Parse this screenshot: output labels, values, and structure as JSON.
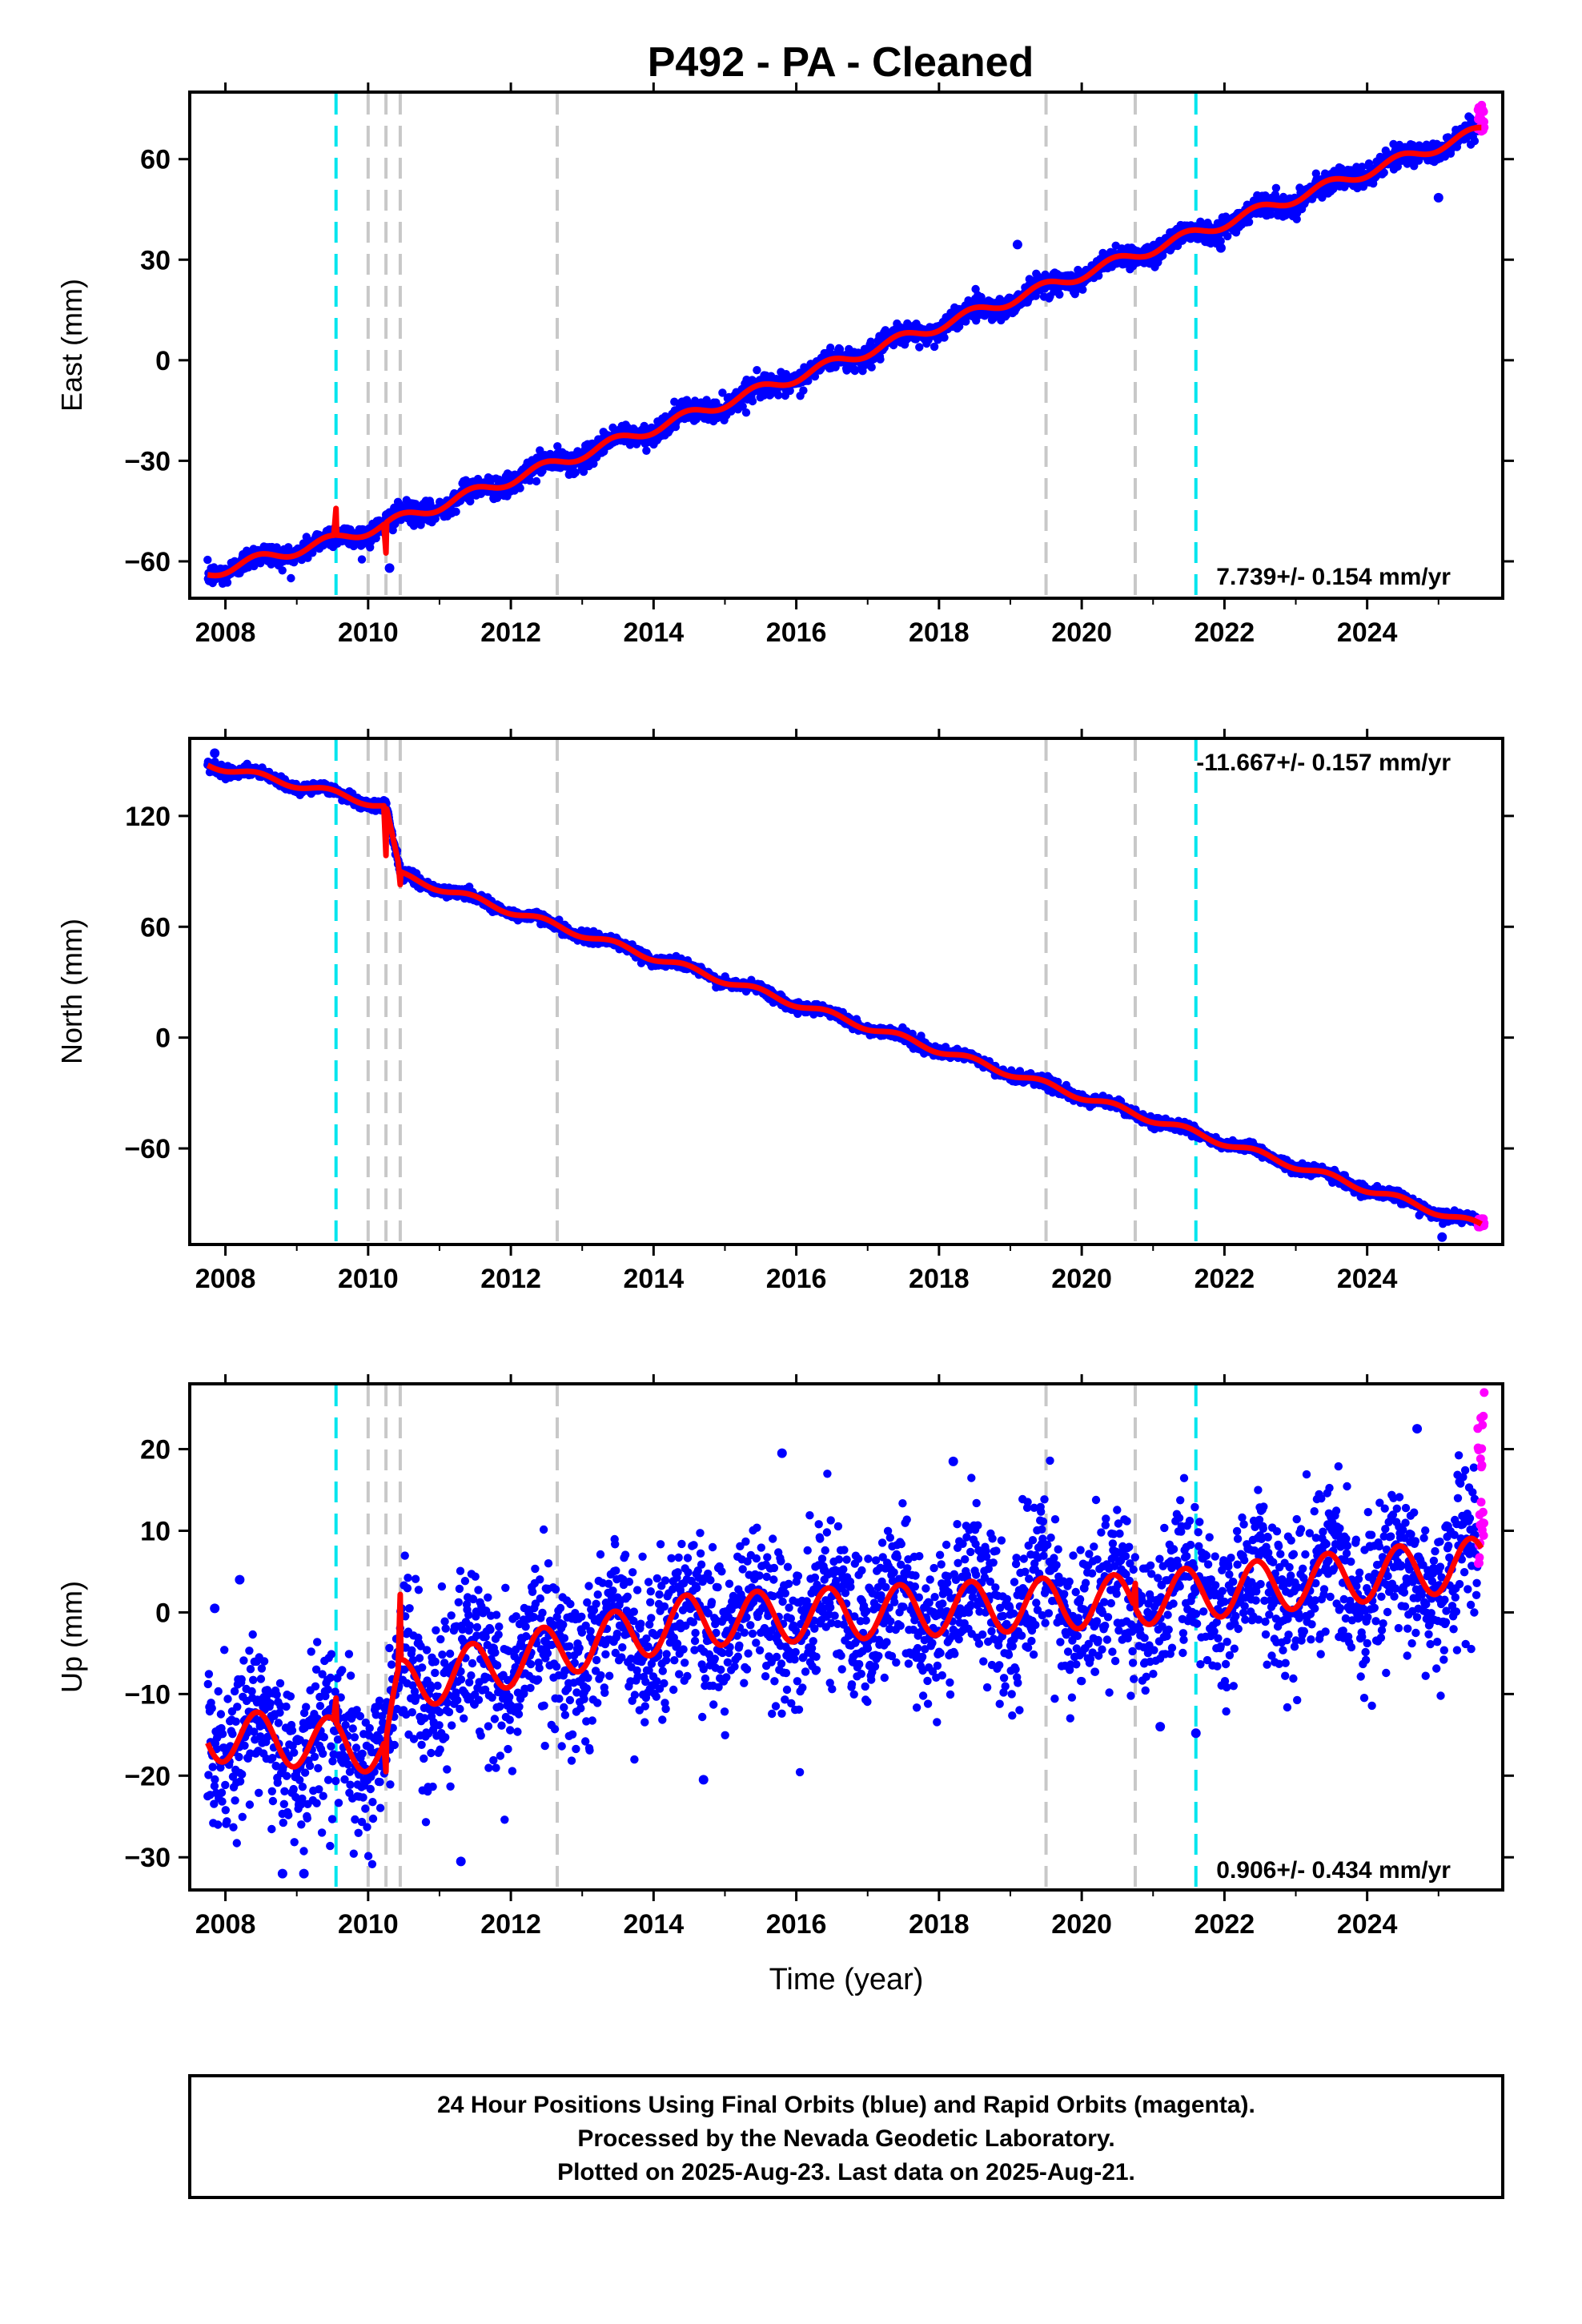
{
  "title": "P492  - PA - Cleaned",
  "colors": {
    "final_orbits": "#0000ff",
    "rapid_orbits": "#ff00ff",
    "model": "#ff0000",
    "offset_equipment": "#00e5ee",
    "offset_other": "#c8c8c8",
    "frame": "#000000"
  },
  "footer": {
    "line1": "24 Hour Positions Using Final Orbits (blue) and Rapid Orbits (magenta).",
    "line2": "Processed by the Nevada Geodetic Laboratory.",
    "line3": "Plotted on 2025-Aug-23. Last data on 2025-Aug-21."
  },
  "chart_data": [
    {
      "type": "scatter",
      "ylabel": "East (mm)",
      "xlabel": "",
      "xlim": [
        2007.5,
        2025.9
      ],
      "ylim": [
        -71,
        80
      ],
      "x_ticks": [
        2008,
        2010,
        2012,
        2014,
        2016,
        2018,
        2020,
        2022,
        2024
      ],
      "y_ticks": [
        -60,
        -30,
        0,
        30,
        60
      ],
      "y_tick_labels": [
        "−60",
        "−30",
        "0",
        "30",
        "60"
      ],
      "rate_label": "7.739+/- 0.154 mm/yr",
      "rate_position": "bottom-right",
      "offsets_cyan": [
        2009.55,
        2021.6
      ],
      "offsets_gray": [
        2010.0,
        2010.25,
        2010.45,
        2012.65,
        2019.5,
        2020.75
      ],
      "model_trend": {
        "t": [
          2007.75,
          2009.55,
          2010.25,
          2025.6
        ],
        "y": [
          -63.5,
          -53.5,
          -49,
          68.5
        ],
        "seasonal_amplitude": 1.6
      },
      "model_steps": [
        {
          "x": 2009.55,
          "dy": 8
        },
        {
          "x": 2010.25,
          "dy": -9
        }
      ],
      "final_orbits": {
        "start": 2007.75,
        "end": 2025.55,
        "noise": 1.6,
        "outliers": [
          [
            2019.1,
            34.5
          ],
          [
            2021.95,
            33.5
          ],
          [
            2025.0,
            48.5
          ],
          [
            2010.3,
            -62
          ]
        ]
      },
      "rapid_orbits": {
        "start": 2025.55,
        "end": 2025.64,
        "y_range": [
          68,
          77
        ]
      }
    },
    {
      "type": "scatter",
      "ylabel": "North (mm)",
      "xlabel": "",
      "xlim": [
        2007.5,
        2025.9
      ],
      "ylim": [
        -112,
        162
      ],
      "x_ticks": [
        2008,
        2010,
        2012,
        2014,
        2016,
        2018,
        2020,
        2022,
        2024
      ],
      "y_ticks": [
        -60,
        0,
        60,
        120
      ],
      "y_tick_labels": [
        "−60",
        "0",
        "60",
        "120"
      ],
      "rate_label": "-11.667+/- 0.157 mm/yr",
      "rate_position": "top-right",
      "offsets_cyan": [
        2009.55,
        2021.6
      ],
      "offsets_gray": [
        2010.0,
        2010.25,
        2010.45,
        2012.65,
        2019.5,
        2020.75
      ],
      "model_trend": {
        "t": [
          2007.75,
          2009.55,
          2010.25,
          2010.45,
          2025.6
        ],
        "y": [
          148,
          132,
          125,
          88,
          -102
        ],
        "seasonal_amplitude": 1.8
      },
      "model_steps": [
        {
          "x": 2010.25,
          "dy": -27
        },
        {
          "x": 2010.45,
          "dy": -7
        }
      ],
      "final_orbits": {
        "start": 2007.75,
        "end": 2025.55,
        "noise": 1.4,
        "outliers": [
          [
            2007.85,
            154
          ],
          [
            2025.05,
            -108
          ]
        ]
      },
      "rapid_orbits": {
        "start": 2025.55,
        "end": 2025.64,
        "y_range": [
          -103,
          -98
        ]
      }
    },
    {
      "type": "scatter",
      "ylabel": "Up (mm)",
      "xlabel": "Time (year)",
      "xlim": [
        2007.5,
        2025.9
      ],
      "ylim": [
        -34,
        28
      ],
      "x_ticks": [
        2008,
        2010,
        2012,
        2014,
        2016,
        2018,
        2020,
        2022,
        2024
      ],
      "y_ticks": [
        -30,
        -20,
        -10,
        0,
        10,
        20
      ],
      "y_tick_labels": [
        "−30",
        "−20",
        "−10",
        "0",
        "10",
        "20"
      ],
      "rate_label": "0.906+/- 0.434 mm/yr",
      "rate_position": "bottom-right",
      "offsets_cyan": [
        2009.55,
        2021.6
      ],
      "offsets_gray": [
        2010.0,
        2010.25,
        2010.45,
        2012.65,
        2019.5,
        2020.75
      ],
      "model_trend": {
        "t": [
          2007.75,
          2010.25,
          2010.45,
          2014.5,
          2020.7,
          2025.6
        ],
        "y": [
          -15,
          -16.5,
          -9,
          -1,
          1.5,
          6
        ],
        "seasonal_amplitude": 3.2
      },
      "model_steps": [
        {
          "x": 2009.55,
          "dy": 3
        },
        {
          "x": 2010.25,
          "dy": -4
        },
        {
          "x": 2010.45,
          "dy": 8
        },
        {
          "x": 2020.75,
          "dy": 3
        }
      ],
      "final_orbits": {
        "start": 2007.75,
        "end": 2025.55,
        "noise": 4.6,
        "outliers": [
          [
            2008.8,
            -32
          ],
          [
            2009.1,
            -32
          ],
          [
            2011.3,
            -30.5
          ],
          [
            2014.7,
            -20.5
          ],
          [
            2015.8,
            19.5
          ],
          [
            2018.2,
            18.5
          ],
          [
            2021.1,
            -14
          ],
          [
            2021.6,
            -14.8
          ],
          [
            2024.7,
            22.5
          ],
          [
            2007.85,
            0.5
          ],
          [
            2008.2,
            4
          ]
        ]
      },
      "rapid_orbits": {
        "start": 2025.55,
        "end": 2025.64,
        "y_range": [
          4.5,
          27
        ]
      }
    }
  ]
}
